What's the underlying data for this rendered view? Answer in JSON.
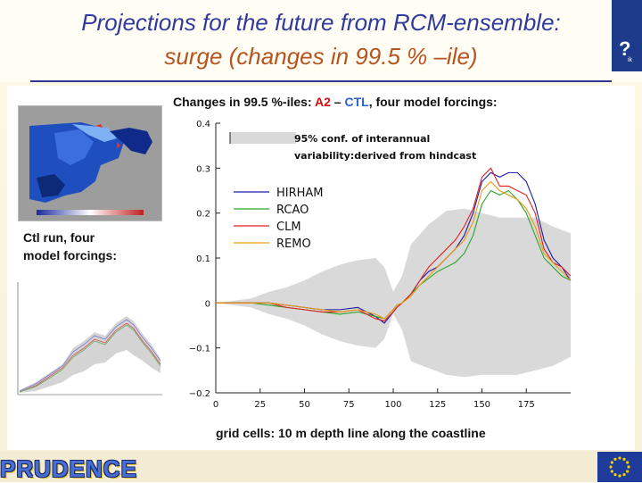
{
  "slide": {
    "title_line1": "Projections for the future from RCM-ensemble:",
    "title_line2": "surge (changes in 99.5 % –ile)",
    "title_color_1": "#2f3a9e",
    "title_color_2": "#b5541e",
    "logo_text": "PRUDENCE",
    "corner_glyph": "?",
    "corner_text": "ik",
    "side_label_line1": "Ctl run, four",
    "side_label_line2": "model forcings:"
  },
  "chart_data": {
    "type": "line",
    "title_parts": [
      "Changes in 99.5 %-iles: ",
      "A2",
      " – ",
      "CTL",
      ",  four model forcings:"
    ],
    "xlabel": "grid cells: 10 m depth line along the coastline",
    "ylabel": "",
    "xlim": [
      0,
      200
    ],
    "ylim": [
      -0.2,
      0.4
    ],
    "x_ticks": [
      0,
      25,
      50,
      75,
      100,
      125,
      150,
      175
    ],
    "y_ticks": [
      0.4,
      0.3,
      0.2,
      0.1,
      0,
      -0.1,
      -0.2
    ],
    "y_tick_labels": [
      "0.4",
      "0.3",
      "0.2",
      "0.1",
      "0",
      "−0.1",
      "−0.2"
    ],
    "band_legend_line1": "95% conf. of interannual",
    "band_legend_line2": "variability:derived from hindcast",
    "band": {
      "x": [
        0,
        10,
        20,
        30,
        40,
        50,
        60,
        70,
        80,
        90,
        95,
        100,
        105,
        110,
        120,
        130,
        140,
        150,
        160,
        170,
        180,
        190,
        200
      ],
      "upper": [
        0.0,
        0.005,
        0.01,
        0.025,
        0.035,
        0.05,
        0.07,
        0.085,
        0.095,
        0.1,
        0.08,
        0.025,
        0.06,
        0.13,
        0.175,
        0.205,
        0.21,
        0.2,
        0.19,
        0.19,
        0.19,
        0.17,
        0.155
      ],
      "lower": [
        0.0,
        -0.005,
        -0.01,
        -0.025,
        -0.035,
        -0.05,
        -0.07,
        -0.085,
        -0.095,
        -0.1,
        -0.08,
        -0.025,
        -0.06,
        -0.13,
        -0.145,
        -0.16,
        -0.165,
        -0.16,
        -0.16,
        -0.16,
        -0.15,
        -0.14,
        -0.12
      ]
    },
    "x": [
      0,
      10,
      20,
      30,
      40,
      50,
      60,
      70,
      80,
      90,
      95,
      100,
      102,
      105,
      110,
      115,
      120,
      125,
      130,
      135,
      140,
      145,
      150,
      155,
      160,
      165,
      170,
      175,
      180,
      185,
      190,
      195,
      200
    ],
    "series": [
      {
        "name": "HIRHAM",
        "color": "#1a1aa8",
        "values": [
          0.0,
          0.0,
          0.0,
          0.0,
          -0.005,
          -0.01,
          -0.015,
          -0.015,
          -0.01,
          -0.03,
          -0.045,
          -0.02,
          -0.01,
          0.0,
          0.02,
          0.05,
          0.07,
          0.08,
          0.1,
          0.12,
          0.15,
          0.2,
          0.27,
          0.29,
          0.28,
          0.29,
          0.29,
          0.27,
          0.22,
          0.14,
          0.1,
          0.08,
          0.05
        ]
      },
      {
        "name": "RCAO",
        "color": "#2aa52a",
        "values": [
          0.0,
          0.0,
          0.0,
          -0.005,
          -0.01,
          -0.015,
          -0.02,
          -0.025,
          -0.02,
          -0.03,
          -0.035,
          -0.015,
          -0.005,
          0.0,
          0.02,
          0.04,
          0.055,
          0.07,
          0.08,
          0.09,
          0.11,
          0.15,
          0.22,
          0.25,
          0.24,
          0.25,
          0.23,
          0.2,
          0.15,
          0.1,
          0.08,
          0.06,
          0.05
        ]
      },
      {
        "name": "CLM",
        "color": "#e02020",
        "values": [
          0.0,
          0.0,
          0.0,
          0.0,
          -0.01,
          -0.015,
          -0.02,
          -0.02,
          -0.015,
          -0.035,
          -0.04,
          -0.02,
          -0.01,
          0.0,
          0.02,
          0.05,
          0.08,
          0.1,
          0.12,
          0.14,
          0.17,
          0.21,
          0.28,
          0.3,
          0.26,
          0.26,
          0.25,
          0.24,
          0.2,
          0.12,
          0.09,
          0.08,
          0.06
        ]
      },
      {
        "name": "REMO",
        "color": "#e89a10",
        "values": [
          0.0,
          0.0,
          0.0,
          0.0,
          -0.005,
          -0.01,
          -0.015,
          -0.02,
          -0.015,
          -0.025,
          -0.035,
          -0.015,
          -0.005,
          0.0,
          0.015,
          0.04,
          0.06,
          0.08,
          0.1,
          0.12,
          0.14,
          0.18,
          0.25,
          0.27,
          0.25,
          0.24,
          0.23,
          0.21,
          0.17,
          0.11,
          0.09,
          0.07,
          0.05
        ]
      }
    ]
  }
}
